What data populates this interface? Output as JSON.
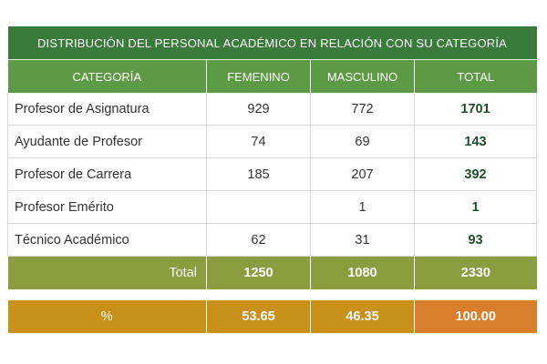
{
  "table": {
    "title": "DISTRIBUCIÓN DEL PERSONAL ACADÉMICO EN RELACIÓN CON SU CATEGORÍA",
    "headers": [
      "CATEGORÍA",
      "FEMENINO",
      "MASCULINO",
      "TOTAL"
    ],
    "rows": [
      {
        "categoria": "Profesor de Asignatura",
        "femenino": "929",
        "masculino": "772",
        "total": "1701"
      },
      {
        "categoria": "Ayudante de Profesor",
        "femenino": "74",
        "masculino": "69",
        "total": "143"
      },
      {
        "categoria": "Profesor de Carrera",
        "femenino": "185",
        "masculino": "207",
        "total": "392"
      },
      {
        "categoria": "Profesor Emérito",
        "femenino": "",
        "masculino": "1",
        "total": "1"
      },
      {
        "categoria": "Técnico Académico",
        "femenino": "62",
        "masculino": "31",
        "total": "93"
      }
    ],
    "total_row": {
      "label": "Total",
      "femenino": "1250",
      "masculino": "1080",
      "total": "2330"
    },
    "percent_row": {
      "label": "%",
      "femenino": "53.65",
      "masculino": "46.35",
      "total": "100.00"
    }
  },
  "colors": {
    "title_bg": "#3a7a3a",
    "header_bg": "#5d9a45",
    "total_bg": "#8c9d3f",
    "percent_bg": "#c9901a",
    "percent_total_bg": "#d97f2c",
    "total_text": "#1f4f2a"
  }
}
